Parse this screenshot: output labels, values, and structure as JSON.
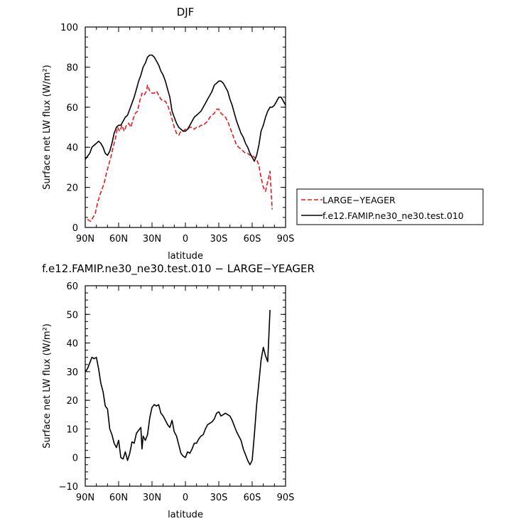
{
  "chart_data": [
    {
      "type": "line",
      "title": "DJF",
      "xlabel": "latitude",
      "ylabel": "Surface net LW flux (W/m²)",
      "xlim": [
        90,
        -90
      ],
      "ylim": [
        0,
        100
      ],
      "x_tick_values": [
        90,
        60,
        30,
        0,
        -30,
        -60,
        -90
      ],
      "x_tick_labels": [
        "90N",
        "60N",
        "30N",
        "0",
        "30S",
        "60S",
        "90S"
      ],
      "y_tick_values": [
        0,
        20,
        40,
        60,
        80,
        100
      ],
      "y_tick_labels": [
        "0",
        "20",
        "40",
        "60",
        "80",
        "100"
      ],
      "legend": {
        "placement": "outside-right",
        "entries": [
          "LARGE−YEAGER",
          "f.e12.FAMIP.ne30_ne30.test.010"
        ]
      },
      "series": [
        {
          "name": "LARGE−YEAGER",
          "color": "#e8191c",
          "dash": true,
          "points": [
            [
              88,
              4
            ],
            [
              85,
              3
            ],
            [
              83,
              5
            ],
            [
              81,
              7
            ],
            [
              79,
              12
            ],
            [
              77,
              16
            ],
            [
              75,
              19
            ],
            [
              73,
              22
            ],
            [
              71,
              27
            ],
            [
              69,
              31
            ],
            [
              67,
              35
            ],
            [
              65,
              40
            ],
            [
              63,
              44
            ],
            [
              61,
              50
            ],
            [
              59,
              48
            ],
            [
              57,
              51
            ],
            [
              55,
              48
            ],
            [
              53,
              51
            ],
            [
              51,
              52
            ],
            [
              49,
              50
            ],
            [
              47,
              54
            ],
            [
              45,
              57
            ],
            [
              43,
              58
            ],
            [
              41,
              63
            ],
            [
              39,
              67
            ],
            [
              37,
              66
            ],
            [
              35,
              68
            ],
            [
              34,
              71
            ],
            [
              32,
              68
            ],
            [
              30,
              67
            ],
            [
              28,
              67
            ],
            [
              26,
              68
            ],
            [
              24,
              66
            ],
            [
              22,
              64
            ],
            [
              20,
              63
            ],
            [
              18,
              63
            ],
            [
              16,
              61
            ],
            [
              14,
              58
            ],
            [
              12,
              54
            ],
            [
              10,
              50
            ],
            [
              8,
              47
            ],
            [
              6,
              46
            ],
            [
              4,
              48
            ],
            [
              2,
              48
            ],
            [
              0,
              49
            ],
            [
              -2,
              49
            ],
            [
              -4,
              50
            ],
            [
              -6,
              50
            ],
            [
              -8,
              49
            ],
            [
              -10,
              50
            ],
            [
              -12,
              50
            ],
            [
              -14,
              51
            ],
            [
              -16,
              51
            ],
            [
              -18,
              52
            ],
            [
              -20,
              53
            ],
            [
              -22,
              55
            ],
            [
              -24,
              56
            ],
            [
              -26,
              57
            ],
            [
              -28,
              59
            ],
            [
              -30,
              59
            ],
            [
              -32,
              57
            ],
            [
              -34,
              56
            ],
            [
              -36,
              55
            ],
            [
              -38,
              53
            ],
            [
              -40,
              50
            ],
            [
              -42,
              47
            ],
            [
              -44,
              44
            ],
            [
              -46,
              41
            ],
            [
              -48,
              40
            ],
            [
              -50,
              39
            ],
            [
              -52,
              38
            ],
            [
              -54,
              37
            ],
            [
              -56,
              37
            ],
            [
              -58,
              36
            ],
            [
              -60,
              36
            ],
            [
              -62,
              35
            ],
            [
              -64,
              34
            ],
            [
              -66,
              31
            ],
            [
              -68,
              25
            ],
            [
              -70,
              20
            ],
            [
              -72,
              18
            ],
            [
              -74,
              23
            ],
            [
              -76,
              28
            ],
            [
              -78,
              9
            ]
          ]
        },
        {
          "name": "f.e12.FAMIP.ne30_ne30.test.010",
          "color": "#000000",
          "dash": false,
          "points": [
            [
              90,
              34
            ],
            [
              86,
              37
            ],
            [
              84,
              40
            ],
            [
              82,
              41
            ],
            [
              80,
              42
            ],
            [
              78,
              43
            ],
            [
              76,
              42
            ],
            [
              74,
              40
            ],
            [
              72,
              37
            ],
            [
              70,
              36
            ],
            [
              68,
              38
            ],
            [
              66,
              42
            ],
            [
              64,
              47
            ],
            [
              62,
              50
            ],
            [
              60,
              51
            ],
            [
              58,
              51
            ],
            [
              56,
              53
            ],
            [
              54,
              55
            ],
            [
              52,
              56
            ],
            [
              50,
              59
            ],
            [
              48,
              62
            ],
            [
              46,
              65
            ],
            [
              44,
              69
            ],
            [
              42,
              73
            ],
            [
              40,
              76
            ],
            [
              38,
              80
            ],
            [
              36,
              82
            ],
            [
              34,
              85
            ],
            [
              32,
              86
            ],
            [
              30,
              86
            ],
            [
              28,
              85
            ],
            [
              26,
              83
            ],
            [
              24,
              81
            ],
            [
              22,
              78
            ],
            [
              20,
              76
            ],
            [
              18,
              73
            ],
            [
              16,
              69
            ],
            [
              14,
              65
            ],
            [
              12,
              58
            ],
            [
              10,
              55
            ],
            [
              8,
              52
            ],
            [
              6,
              50
            ],
            [
              4,
              49
            ],
            [
              2,
              48
            ],
            [
              0,
              48
            ],
            [
              -2,
              49
            ],
            [
              -4,
              51
            ],
            [
              -6,
              53
            ],
            [
              -8,
              55
            ],
            [
              -10,
              56
            ],
            [
              -12,
              57
            ],
            [
              -14,
              58
            ],
            [
              -16,
              60
            ],
            [
              -18,
              62
            ],
            [
              -20,
              64
            ],
            [
              -22,
              66
            ],
            [
              -24,
              68
            ],
            [
              -26,
              71
            ],
            [
              -28,
              72
            ],
            [
              -30,
              73
            ],
            [
              -32,
              73
            ],
            [
              -34,
              72
            ],
            [
              -36,
              70
            ],
            [
              -38,
              68
            ],
            [
              -40,
              64
            ],
            [
              -42,
              61
            ],
            [
              -44,
              57
            ],
            [
              -46,
              53
            ],
            [
              -48,
              50
            ],
            [
              -50,
              47
            ],
            [
              -52,
              45
            ],
            [
              -54,
              42
            ],
            [
              -56,
              40
            ],
            [
              -58,
              37
            ],
            [
              -60,
              35
            ],
            [
              -62,
              33
            ],
            [
              -64,
              36
            ],
            [
              -66,
              41
            ],
            [
              -68,
              48
            ],
            [
              -70,
              51
            ],
            [
              -72,
              55
            ],
            [
              -74,
              58
            ],
            [
              -76,
              60
            ],
            [
              -78,
              60
            ],
            [
              -80,
              61
            ],
            [
              -82,
              63
            ],
            [
              -84,
              65
            ],
            [
              -86,
              65
            ],
            [
              -88,
              63
            ],
            [
              -90,
              61
            ]
          ]
        }
      ]
    },
    {
      "type": "line",
      "title": "f.e12.FAMIP.ne30_ne30.test.010 − LARGE−YEAGER",
      "xlabel": "latitude",
      "ylabel": "Surface net LW flux (W/m²)",
      "xlim": [
        90,
        -90
      ],
      "ylim": [
        -10,
        60
      ],
      "x_tick_values": [
        90,
        60,
        30,
        0,
        -30,
        -60,
        -90
      ],
      "x_tick_labels": [
        "90N",
        "60N",
        "30N",
        "0",
        "30S",
        "60S",
        "90S"
      ],
      "y_tick_values": [
        -10,
        0,
        10,
        20,
        30,
        40,
        50,
        60
      ],
      "y_tick_labels": [
        "−10",
        "0",
        "10",
        "20",
        "30",
        "40",
        "50",
        "60"
      ],
      "series": [
        {
          "color": "#000000",
          "dash": false,
          "points": [
            [
              90,
              30
            ],
            [
              88,
              31
            ],
            [
              86,
              33
            ],
            [
              84,
              35
            ],
            [
              82,
              34.5
            ],
            [
              80,
              35
            ],
            [
              78,
              31
            ],
            [
              76,
              26
            ],
            [
              74,
              23
            ],
            [
              72,
              18
            ],
            [
              70,
              17
            ],
            [
              68,
              10
            ],
            [
              66,
              8
            ],
            [
              64,
              5
            ],
            [
              62,
              3.5
            ],
            [
              60,
              6
            ],
            [
              58,
              0
            ],
            [
              56,
              -0.5
            ],
            [
              54,
              2
            ],
            [
              52,
              -1
            ],
            [
              50,
              1.5
            ],
            [
              48,
              5.5
            ],
            [
              46,
              5
            ],
            [
              44,
              8.5
            ],
            [
              42,
              9.5
            ],
            [
              40,
              10.5
            ],
            [
              39,
              3
            ],
            [
              38,
              7.5
            ],
            [
              36,
              6
            ],
            [
              34,
              8
            ],
            [
              32,
              14
            ],
            [
              30,
              17.5
            ],
            [
              28,
              18.5
            ],
            [
              26,
              18
            ],
            [
              24,
              18.5
            ],
            [
              22,
              15.5
            ],
            [
              20,
              14.5
            ],
            [
              18,
              13
            ],
            [
              16,
              11.5
            ],
            [
              14,
              10.5
            ],
            [
              12,
              13
            ],
            [
              10,
              9
            ],
            [
              8,
              7.5
            ],
            [
              6,
              4.5
            ],
            [
              4,
              1.5
            ],
            [
              2,
              0.5
            ],
            [
              0,
              0
            ],
            [
              -2,
              2
            ],
            [
              -4,
              1.5
            ],
            [
              -6,
              3
            ],
            [
              -8,
              5
            ],
            [
              -10,
              5
            ],
            [
              -12,
              6.5
            ],
            [
              -14,
              7.5
            ],
            [
              -16,
              8
            ],
            [
              -18,
              10
            ],
            [
              -20,
              11.5
            ],
            [
              -22,
              12
            ],
            [
              -24,
              12.5
            ],
            [
              -26,
              13.5
            ],
            [
              -28,
              15.5
            ],
            [
              -30,
              16
            ],
            [
              -32,
              14.5
            ],
            [
              -34,
              15
            ],
            [
              -36,
              15.5
            ],
            [
              -38,
              15
            ],
            [
              -40,
              14.5
            ],
            [
              -42,
              13
            ],
            [
              -44,
              11
            ],
            [
              -46,
              9
            ],
            [
              -48,
              7.5
            ],
            [
              -50,
              6
            ],
            [
              -52,
              3
            ],
            [
              -54,
              1
            ],
            [
              -56,
              -1
            ],
            [
              -58,
              -2.5
            ],
            [
              -60,
              -1
            ],
            [
              -62,
              8
            ],
            [
              -64,
              18.5
            ],
            [
              -66,
              26
            ],
            [
              -68,
              34
            ],
            [
              -70,
              38.5
            ],
            [
              -72,
              35.5
            ],
            [
              -74,
              33.5
            ],
            [
              -76,
              51.5
            ]
          ]
        }
      ]
    }
  ]
}
